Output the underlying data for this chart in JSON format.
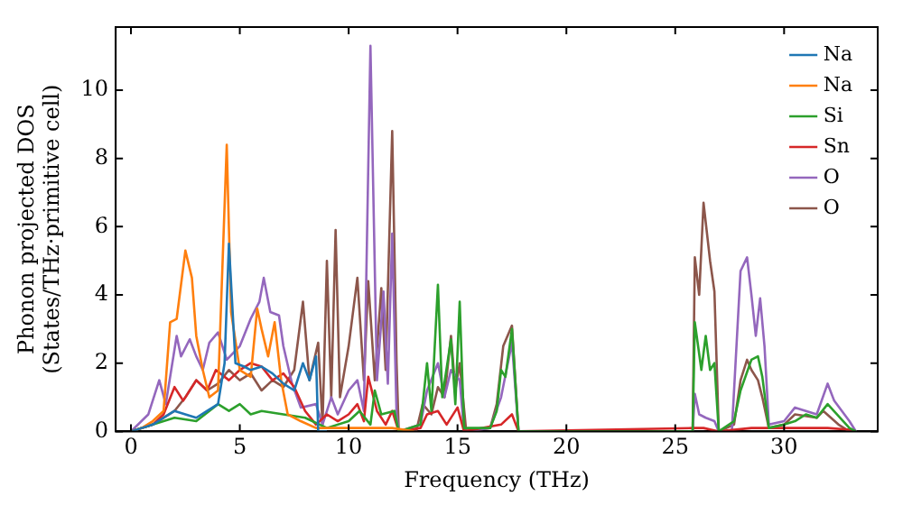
{
  "chart_data": {
    "type": "line",
    "xlabel": "Frequency (THz)",
    "ylabel": "Phonon projected DOS\n(States/THz·primitive cell)",
    "xlim": [
      -0.7,
      34.3
    ],
    "ylim": [
      0,
      11.85
    ],
    "xticks": [
      0,
      5,
      10,
      15,
      20,
      25,
      30
    ],
    "yticks": [
      0,
      2,
      4,
      6,
      8,
      10
    ],
    "grid": false,
    "legend": "top right",
    "marker": "none",
    "line_style": "solid",
    "series": [
      {
        "name": "Na",
        "color": "#1f77b4",
        "x": [
          0,
          0.5,
          1,
          1.5,
          2,
          2.5,
          3,
          3.5,
          4,
          4.3,
          4.5,
          4.8,
          5.2,
          5.5,
          6,
          6.5,
          7,
          7.5,
          7.9,
          8.2,
          8.5,
          8.6,
          9
        ],
        "values": [
          0,
          0.1,
          0.2,
          0.4,
          0.6,
          0.5,
          0.4,
          0.6,
          0.8,
          2,
          5.5,
          2,
          1.9,
          1.8,
          1.9,
          1.7,
          1.4,
          1.2,
          2,
          1.5,
          2.2,
          0,
          0
        ]
      },
      {
        "name": "Na",
        "color": "#ff7f0e",
        "x": [
          0,
          0.5,
          1,
          1.5,
          1.8,
          2.1,
          2.5,
          2.8,
          3.0,
          3.3,
          3.6,
          4.0,
          4.4,
          4.6,
          5.0,
          5.5,
          5.8,
          6.0,
          6.3,
          6.6,
          6.9,
          7.2,
          7.8,
          8.5,
          9,
          10,
          11,
          12,
          13
        ],
        "values": [
          0,
          0.1,
          0.3,
          0.6,
          3.2,
          3.3,
          5.3,
          4.5,
          2.8,
          1.8,
          1.0,
          1.2,
          8.4,
          3.5,
          1.8,
          1.6,
          3.6,
          3.0,
          2.2,
          3.2,
          1.5,
          0.5,
          0.3,
          0.1,
          0.1,
          0.1,
          0.1,
          0.1,
          0
        ]
      },
      {
        "name": "Si",
        "color": "#2ca02c",
        "x": [
          0,
          1,
          2,
          3,
          4,
          4.5,
          5,
          5.5,
          6,
          7,
          8,
          9,
          10,
          10.5,
          11,
          11.2,
          11.5,
          12.1,
          12.3,
          13.3,
          13.6,
          13.8,
          14.1,
          14.3,
          14.7,
          14.9,
          15.1,
          15.3,
          16.5,
          16.8,
          17,
          17.2,
          17.5,
          17.8,
          25.8,
          25.9,
          26.2,
          26.4,
          26.6,
          26.8,
          27,
          27.7,
          28,
          28.5,
          28.8,
          29,
          29.3,
          30,
          30.5,
          31,
          31.5,
          32,
          33,
          33.3
        ],
        "values": [
          0,
          0.2,
          0.4,
          0.3,
          0.8,
          0.6,
          0.8,
          0.5,
          0.6,
          0.5,
          0.4,
          0.1,
          0.3,
          0.6,
          0.2,
          1.2,
          0.5,
          0.6,
          0,
          0.2,
          2,
          0.6,
          4.3,
          1,
          2.7,
          0.8,
          3.8,
          0.1,
          0.1,
          0.6,
          1.8,
          1.6,
          3,
          0,
          0,
          3.2,
          1.8,
          2.8,
          1.8,
          2,
          0,
          0.3,
          1.2,
          2.1,
          2.2,
          1.6,
          0.1,
          0.2,
          0.3,
          0.5,
          0.4,
          0.8,
          0.1,
          0
        ]
      },
      {
        "name": "Sn",
        "color": "#d62728",
        "x": [
          0,
          1,
          1.5,
          2,
          2.4,
          3,
          3.5,
          3.9,
          4.5,
          5,
          5.5,
          6,
          6.5,
          7,
          7.5,
          8,
          8.5,
          9,
          9.5,
          10,
          10.4,
          10.7,
          10.9,
          11.3,
          11.7,
          12,
          12.3,
          13.3,
          13.6,
          14.1,
          14.5,
          15,
          15.3,
          17,
          17.5,
          17.8,
          25.9,
          26.3,
          27,
          28.5,
          30,
          31,
          32,
          33,
          33.3
        ],
        "values": [
          0,
          0.2,
          0.5,
          1.3,
          0.9,
          1.5,
          1.2,
          1.8,
          1.5,
          1.8,
          2,
          1.9,
          1.5,
          1.7,
          1.3,
          0.6,
          0.2,
          0.5,
          0.3,
          0.5,
          0.8,
          0.3,
          1.6,
          0.6,
          0.2,
          0.6,
          0,
          0.1,
          0.5,
          0.6,
          0.2,
          0.7,
          0,
          0.2,
          0.5,
          0,
          0.1,
          0.1,
          0,
          0.1,
          0.1,
          0.1,
          0.1,
          0.05,
          0
        ]
      },
      {
        "name": "O",
        "color": "#9467bd",
        "x": [
          0,
          0.8,
          1.3,
          1.6,
          2.1,
          2.3,
          2.7,
          3,
          3.3,
          3.6,
          4,
          4.4,
          5,
          5.5,
          5.9,
          6.1,
          6.4,
          6.8,
          7,
          7.4,
          7.8,
          8.5,
          8.8,
          9.2,
          9.5,
          10,
          10.4,
          10.7,
          11,
          11.3,
          11.6,
          11.8,
          12,
          12.2,
          12.3,
          13.3,
          13.6,
          14.1,
          14.4,
          14.7,
          15.1,
          15.3,
          16.5,
          17,
          17.5,
          17.8,
          25.8,
          25.9,
          26.1,
          26.4,
          26.8,
          27,
          27.6,
          28,
          28.3,
          28.5,
          28.7,
          28.9,
          29.1,
          29.3,
          30,
          30.5,
          31,
          31.5,
          32,
          32.3,
          33,
          33.3
        ],
        "values": [
          0,
          0.5,
          1.5,
          0.8,
          2.8,
          2.2,
          2.7,
          2.2,
          1.8,
          2.6,
          2.9,
          2.1,
          2.5,
          3.3,
          3.8,
          4.5,
          3.5,
          3.4,
          2.5,
          1.4,
          0.7,
          0.8,
          0.2,
          1,
          0.5,
          1.2,
          1.5,
          0.6,
          11.3,
          1.5,
          4.1,
          1.4,
          5.8,
          0.5,
          0,
          0.2,
          1.2,
          2,
          1,
          1.8,
          1.5,
          0,
          0.1,
          1,
          2.6,
          0,
          0,
          1.1,
          0.5,
          0.4,
          0.3,
          0,
          0,
          4.7,
          5.1,
          4,
          2.8,
          3.9,
          2.5,
          0.2,
          0.3,
          0.7,
          0.6,
          0.5,
          1.4,
          0.9,
          0.3,
          0
        ]
      },
      {
        "name": "O",
        "color": "#8c564b",
        "x": [
          0,
          1,
          2,
          2.5,
          3,
          3.5,
          4,
          4.5,
          5,
          5.5,
          6,
          6.5,
          7,
          7.5,
          7.9,
          8.2,
          8.6,
          8.8,
          9,
          9.2,
          9.4,
          9.6,
          10,
          10.4,
          10.7,
          10.9,
          11.2,
          11.5,
          11.7,
          12,
          12.2,
          12.3,
          13.1,
          13.4,
          13.8,
          14.1,
          14.4,
          14.7,
          14.9,
          15.1,
          15.4,
          16.5,
          16.8,
          17.1,
          17.5,
          17.8,
          25.8,
          25.9,
          26.1,
          26.3,
          26.6,
          26.8,
          27,
          27.7,
          28,
          28.3,
          28.5,
          28.8,
          29,
          29.3,
          30,
          30.5,
          31.5,
          31.8,
          32.5,
          33
        ],
        "values": [
          0,
          0.2,
          0.6,
          1,
          1.5,
          1.2,
          1.4,
          1.8,
          1.5,
          1.7,
          1.2,
          1.5,
          1.3,
          1.8,
          3.8,
          1.5,
          2.6,
          0.2,
          5,
          1,
          5.9,
          1,
          2.5,
          4.5,
          1.5,
          4.4,
          1.5,
          4.2,
          1.8,
          8.8,
          2,
          0,
          0,
          0.8,
          0.5,
          1.3,
          1,
          2.8,
          1.2,
          2,
          0,
          0.1,
          0.8,
          2.5,
          3.1,
          0,
          0,
          5.1,
          4,
          6.7,
          5,
          4.1,
          0,
          0.2,
          1.5,
          2.1,
          1.8,
          1.5,
          1,
          0.1,
          0.2,
          0.5,
          0.4,
          0.6,
          0.2,
          0
        ]
      }
    ]
  }
}
